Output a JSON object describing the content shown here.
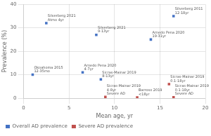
{
  "chart_data": {
    "type": "scatter",
    "xlabel": "Mean age, yr",
    "ylabel": "Prevalence (%)",
    "xlim": [
      0,
      20
    ],
    "xticks": [
      0,
      5,
      10,
      15,
      20
    ],
    "ylim": [
      0,
      40
    ],
    "yticks": [
      0,
      10,
      20,
      30,
      40
    ],
    "grid": true,
    "legend": "bottom",
    "series": [
      {
        "name": "Overall AD prevalence",
        "color": "#4472C4",
        "marker": "square",
        "x": [
          2.5,
          6.5,
          8.5,
          8.0,
          14.0,
          16.5,
          1.0
        ],
        "values": [
          32.0,
          11.0,
          8.0,
          27.0,
          25.0,
          35.0,
          10.0
        ],
        "labels": [
          [
            "Silverberg 2021",
            "Atmo 4yr"
          ],
          [
            "Arnedo Pena 2020",
            "4-7yr"
          ],
          [
            "Sicras-Mainar 2019",
            "8-13yr"
          ],
          [
            "Silverberg 2021",
            "9-13yr"
          ],
          [
            "Arnedo Pena 2020",
            "19-31yr"
          ],
          [
            "Silverberg 2011",
            "12-18yr"
          ],
          [
            "Okoahoma 2015",
            "12-35mo"
          ]
        ]
      },
      {
        "name": "Severe AD prevalence",
        "color": "#C0504D",
        "marker": "square",
        "x": [
          9.0,
          12.5,
          16.0,
          16.5
        ],
        "values": [
          0.5,
          0.3,
          6.0,
          0.4
        ],
        "labels": [
          [
            "Sicras-Mainar 2019",
            "4-8yr",
            "Severe AD"
          ],
          [
            "Barroso 2019",
            "<18yr"
          ],
          [
            "Sicras-Mainar 2019",
            "0.1-18yr"
          ],
          [
            "Sicras-Mainar 2019",
            "0.1-18yr",
            "Severe AD"
          ]
        ]
      }
    ]
  }
}
